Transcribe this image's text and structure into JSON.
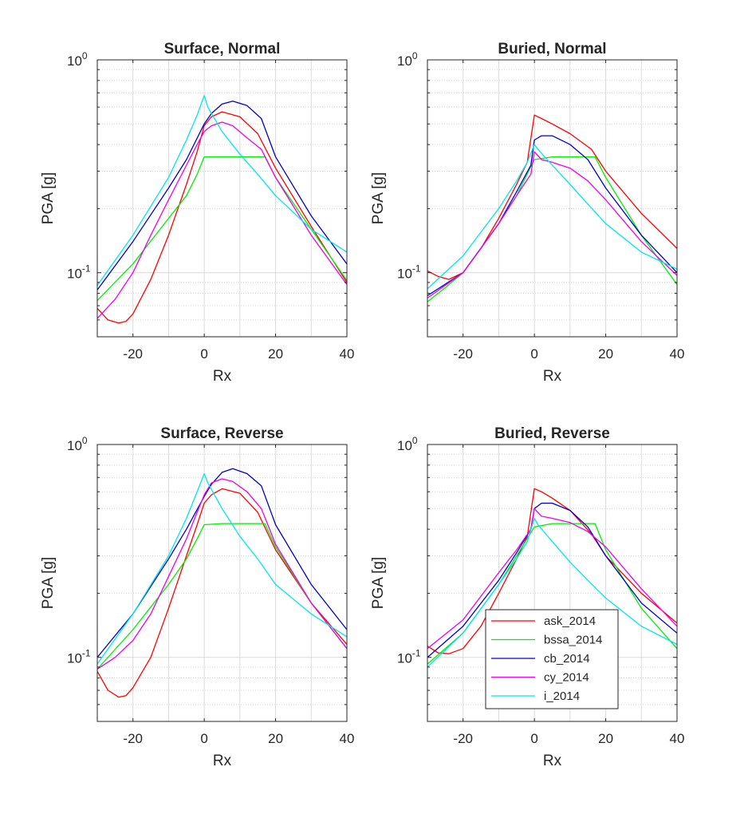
{
  "figure": {
    "series_style": [
      {
        "name": "ask_2014",
        "color": "#ff0000"
      },
      {
        "name": "bssa_2014",
        "color": "#00ee00"
      },
      {
        "name": "cb_2014",
        "color": "#0000cc"
      },
      {
        "name": "cy_2014",
        "color": "#ee00ee"
      },
      {
        "name": "i_2014",
        "color": "#00e5ee"
      }
    ]
  },
  "chart_data": [
    {
      "type": "line",
      "title": "Surface, Normal",
      "xlabel": "Rx",
      "ylabel": "PGA [g]",
      "xlim": [
        -30,
        40
      ],
      "ylim": [
        0.05,
        1.0
      ],
      "yscale": "log",
      "xticks": [
        -20,
        0,
        20,
        40
      ],
      "xtick_labels": [
        "-20",
        "0",
        "20",
        "40"
      ],
      "yticks_major": [
        0.1,
        1.0
      ],
      "ytick_labels": [
        {
          "base": "10",
          "exp": "-1"
        },
        {
          "base": "10",
          "exp": "0"
        }
      ],
      "grid": true,
      "legend": null,
      "series": [
        {
          "name": "ask_2014",
          "x": [
            -30,
            -27,
            -24,
            -22,
            -20,
            -15,
            -10,
            -5,
            -2,
            0,
            2,
            5,
            10,
            15,
            20,
            30,
            40
          ],
          "y": [
            0.068,
            0.06,
            0.058,
            0.059,
            0.064,
            0.093,
            0.15,
            0.26,
            0.37,
            0.49,
            0.54,
            0.57,
            0.54,
            0.45,
            0.31,
            0.165,
            0.09
          ]
        },
        {
          "name": "bssa_2014",
          "x": [
            -30,
            -20,
            -10,
            -5,
            -2,
            0,
            5,
            10,
            17,
            20,
            30,
            40
          ],
          "y": [
            0.074,
            0.11,
            0.18,
            0.23,
            0.29,
            0.35,
            0.35,
            0.35,
            0.35,
            0.28,
            0.16,
            0.092
          ]
        },
        {
          "name": "cb_2014",
          "x": [
            -30,
            -20,
            -10,
            -5,
            0,
            2,
            5,
            8,
            12,
            16,
            20,
            30,
            40
          ],
          "y": [
            0.083,
            0.14,
            0.25,
            0.34,
            0.5,
            0.56,
            0.62,
            0.64,
            0.61,
            0.53,
            0.35,
            0.185,
            0.11
          ]
        },
        {
          "name": "cy_2014",
          "x": [
            -30,
            -25,
            -20,
            -15,
            -10,
            -5,
            -2,
            0,
            2,
            5,
            8,
            12,
            16,
            20,
            30,
            40
          ],
          "y": [
            0.061,
            0.075,
            0.1,
            0.15,
            0.22,
            0.32,
            0.4,
            0.46,
            0.49,
            0.51,
            0.49,
            0.43,
            0.38,
            0.28,
            0.15,
            0.088
          ]
        },
        {
          "name": "i_2014",
          "x": [
            -30,
            -20,
            -10,
            -5,
            -2,
            0,
            1,
            5,
            10,
            15,
            20,
            30,
            40
          ],
          "y": [
            0.087,
            0.15,
            0.28,
            0.42,
            0.55,
            0.68,
            0.6,
            0.46,
            0.36,
            0.29,
            0.23,
            0.16,
            0.125
          ]
        }
      ]
    },
    {
      "type": "line",
      "title": "Buried, Normal",
      "xlabel": "Rx",
      "ylabel": "PGA [g]",
      "xlim": [
        -30,
        40
      ],
      "ylim": [
        0.05,
        1.0
      ],
      "yscale": "log",
      "xticks": [
        -20,
        0,
        20,
        40
      ],
      "xtick_labels": [
        "-20",
        "0",
        "20",
        "40"
      ],
      "yticks_major": [
        0.1,
        1.0
      ],
      "ytick_labels": [
        {
          "base": "10",
          "exp": "-1"
        },
        {
          "base": "10",
          "exp": "0"
        }
      ],
      "grid": true,
      "legend": null,
      "series": [
        {
          "name": "ask_2014",
          "x": [
            -30,
            -27,
            -24,
            -20,
            -15,
            -10,
            -5,
            -2,
            0,
            2,
            5,
            10,
            16,
            20,
            30,
            40
          ],
          "y": [
            0.102,
            0.096,
            0.093,
            0.1,
            0.13,
            0.18,
            0.26,
            0.33,
            0.55,
            0.53,
            0.5,
            0.45,
            0.38,
            0.3,
            0.19,
            0.13
          ]
        },
        {
          "name": "bssa_2014",
          "x": [
            -30,
            -25,
            -20,
            -10,
            -5,
            0,
            5,
            10,
            17,
            20,
            30,
            40
          ],
          "y": [
            0.073,
            0.085,
            0.1,
            0.17,
            0.23,
            0.34,
            0.35,
            0.35,
            0.35,
            0.28,
            0.15,
            0.088
          ]
        },
        {
          "name": "cb_2014",
          "x": [
            -30,
            -20,
            -10,
            -5,
            -1,
            0,
            2,
            5,
            10,
            15,
            20,
            30,
            40
          ],
          "y": [
            0.078,
            0.1,
            0.17,
            0.24,
            0.32,
            0.42,
            0.44,
            0.44,
            0.4,
            0.34,
            0.25,
            0.15,
            0.1
          ]
        },
        {
          "name": "cy_2014",
          "x": [
            -30,
            -20,
            -10,
            -5,
            -1,
            0,
            2,
            5,
            10,
            15,
            20,
            30,
            40
          ],
          "y": [
            0.076,
            0.1,
            0.17,
            0.23,
            0.29,
            0.37,
            0.34,
            0.33,
            0.31,
            0.27,
            0.22,
            0.14,
            0.097
          ]
        },
        {
          "name": "i_2014",
          "x": [
            -30,
            -20,
            -10,
            -5,
            -2,
            0,
            1,
            5,
            10,
            15,
            20,
            30,
            40
          ],
          "y": [
            0.084,
            0.12,
            0.2,
            0.27,
            0.33,
            0.4,
            0.38,
            0.32,
            0.26,
            0.21,
            0.17,
            0.125,
            0.104
          ]
        }
      ]
    },
    {
      "type": "line",
      "title": "Surface, Reverse",
      "xlabel": "Rx",
      "ylabel": "PGA [g]",
      "xlim": [
        -30,
        40
      ],
      "ylim": [
        0.05,
        1.0
      ],
      "yscale": "log",
      "xticks": [
        -20,
        0,
        20,
        40
      ],
      "xtick_labels": [
        "-20",
        "0",
        "20",
        "40"
      ],
      "yticks_major": [
        0.1,
        1.0
      ],
      "ytick_labels": [
        {
          "base": "10",
          "exp": "-1"
        },
        {
          "base": "10",
          "exp": "0"
        }
      ],
      "grid": true,
      "legend": null,
      "series": [
        {
          "name": "ask_2014",
          "x": [
            -30,
            -27,
            -24,
            -22,
            -20,
            -15,
            -10,
            -5,
            -2,
            0,
            2,
            5,
            10,
            15,
            20,
            30,
            40
          ],
          "y": [
            0.086,
            0.07,
            0.065,
            0.066,
            0.072,
            0.1,
            0.17,
            0.3,
            0.42,
            0.53,
            0.58,
            0.62,
            0.59,
            0.48,
            0.32,
            0.18,
            0.115
          ]
        },
        {
          "name": "bssa_2014",
          "x": [
            -30,
            -20,
            -10,
            -5,
            -2,
            0,
            5,
            10,
            17,
            20,
            30,
            40
          ],
          "y": [
            0.088,
            0.135,
            0.22,
            0.29,
            0.36,
            0.42,
            0.425,
            0.425,
            0.425,
            0.33,
            0.18,
            0.11
          ]
        },
        {
          "name": "cb_2014",
          "x": [
            -30,
            -20,
            -10,
            -5,
            0,
            2,
            5,
            8,
            12,
            16,
            20,
            30,
            40
          ],
          "y": [
            0.1,
            0.16,
            0.29,
            0.4,
            0.57,
            0.65,
            0.74,
            0.77,
            0.73,
            0.64,
            0.42,
            0.22,
            0.135
          ]
        },
        {
          "name": "cy_2014",
          "x": [
            -30,
            -25,
            -20,
            -15,
            -10,
            -5,
            -2,
            0,
            2,
            5,
            8,
            12,
            16,
            20,
            30,
            40
          ],
          "y": [
            0.088,
            0.1,
            0.12,
            0.16,
            0.24,
            0.36,
            0.48,
            0.58,
            0.66,
            0.69,
            0.67,
            0.6,
            0.5,
            0.34,
            0.18,
            0.11
          ]
        },
        {
          "name": "i_2014",
          "x": [
            -30,
            -20,
            -10,
            -5,
            -2,
            0,
            1,
            5,
            10,
            15,
            20,
            30,
            40
          ],
          "y": [
            0.093,
            0.16,
            0.3,
            0.45,
            0.6,
            0.73,
            0.66,
            0.5,
            0.37,
            0.29,
            0.22,
            0.16,
            0.125
          ]
        }
      ]
    },
    {
      "type": "line",
      "title": "Buried, Reverse",
      "xlabel": "Rx",
      "ylabel": "PGA [g]",
      "xlim": [
        -30,
        40
      ],
      "ylim": [
        0.05,
        1.0
      ],
      "yscale": "log",
      "xticks": [
        -20,
        0,
        20,
        40
      ],
      "xtick_labels": [
        "-20",
        "0",
        "20",
        "40"
      ],
      "yticks_major": [
        0.1,
        1.0
      ],
      "ytick_labels": [
        {
          "base": "10",
          "exp": "-1"
        },
        {
          "base": "10",
          "exp": "0"
        }
      ],
      "grid": true,
      "legend": {
        "location": "bottom-center",
        "entries": [
          "ask_2014",
          "bssa_2014",
          "cb_2014",
          "cy_2014",
          "i_2014"
        ]
      },
      "series": [
        {
          "name": "ask_2014",
          "x": [
            -30,
            -27,
            -24,
            -20,
            -15,
            -10,
            -5,
            -2,
            0,
            2,
            5,
            10,
            16,
            20,
            30,
            40
          ],
          "y": [
            0.113,
            0.105,
            0.104,
            0.11,
            0.14,
            0.2,
            0.29,
            0.37,
            0.62,
            0.6,
            0.56,
            0.49,
            0.38,
            0.3,
            0.2,
            0.145
          ]
        },
        {
          "name": "bssa_2014",
          "x": [
            -30,
            -25,
            -20,
            -10,
            -5,
            0,
            5,
            10,
            17,
            20,
            30,
            40
          ],
          "y": [
            0.093,
            0.11,
            0.13,
            0.22,
            0.3,
            0.41,
            0.425,
            0.425,
            0.425,
            0.32,
            0.17,
            0.11
          ]
        },
        {
          "name": "cb_2014",
          "x": [
            -30,
            -20,
            -10,
            -5,
            -1,
            0,
            2,
            5,
            10,
            15,
            20,
            30,
            40
          ],
          "y": [
            0.1,
            0.14,
            0.23,
            0.31,
            0.4,
            0.5,
            0.53,
            0.53,
            0.49,
            0.41,
            0.3,
            0.18,
            0.13
          ]
        },
        {
          "name": "cy_2014",
          "x": [
            -30,
            -20,
            -10,
            -5,
            -1,
            0,
            2,
            5,
            10,
            15,
            20,
            30,
            40
          ],
          "y": [
            0.11,
            0.15,
            0.25,
            0.32,
            0.4,
            0.5,
            0.46,
            0.45,
            0.43,
            0.39,
            0.33,
            0.21,
            0.14
          ]
        },
        {
          "name": "i_2014",
          "x": [
            -30,
            -20,
            -10,
            -5,
            -2,
            0,
            1,
            5,
            10,
            15,
            20,
            30,
            40
          ],
          "y": [
            0.09,
            0.13,
            0.22,
            0.29,
            0.35,
            0.45,
            0.42,
            0.35,
            0.28,
            0.23,
            0.19,
            0.14,
            0.115
          ]
        }
      ]
    }
  ]
}
